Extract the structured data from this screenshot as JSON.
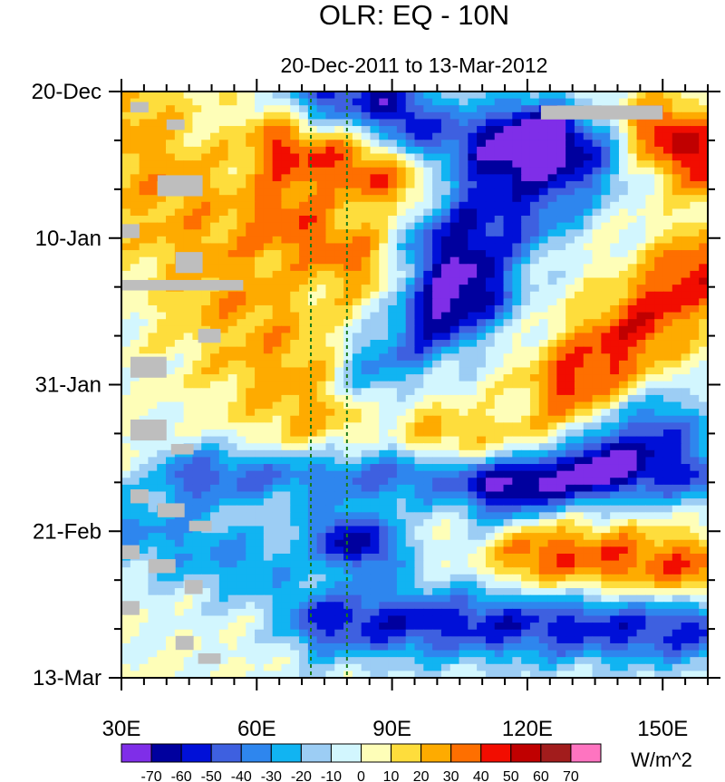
{
  "chart_data": {
    "type": "heatmap",
    "title": "OLR: EQ - 10N",
    "subtitle": "20-Dec-2011 to 13-Mar-2012",
    "xlabel": "",
    "ylabel": "",
    "x_range": [
      30,
      160
    ],
    "y_range_days": [
      0,
      84
    ],
    "x_ticks": [
      {
        "value": 30,
        "label": "30E"
      },
      {
        "value": 60,
        "label": "60E"
      },
      {
        "value": 90,
        "label": "90E"
      },
      {
        "value": 120,
        "label": "120E"
      },
      {
        "value": 150,
        "label": "150E"
      }
    ],
    "y_ticks": [
      {
        "day": 0,
        "label": "20-Dec"
      },
      {
        "day": 21,
        "label": "10-Jan"
      },
      {
        "day": 42,
        "label": "31-Jan"
      },
      {
        "day": 63,
        "label": "21-Feb"
      },
      {
        "day": 84,
        "label": "13-Mar"
      }
    ],
    "reference_lines_x": [
      72,
      80
    ],
    "colorbar": {
      "units": "W/m^2",
      "levels": [
        -70,
        -60,
        -50,
        -40,
        -30,
        -20,
        -10,
        0,
        10,
        20,
        30,
        40,
        50,
        60,
        70
      ],
      "colors": [
        "#7f2ee8",
        "#00009e",
        "#0010d8",
        "#3e60e0",
        "#2e86ee",
        "#11b4f2",
        "#9ccdf4",
        "#d2f6fe",
        "#fefeb8",
        "#fedd3c",
        "#feab00",
        "#fe6f00",
        "#f20d00",
        "#c00000",
        "#a21c1c",
        "#fe74c0"
      ]
    },
    "missing_color": "#bebebe",
    "features": [
      {
        "name": "convective-band",
        "value": -55,
        "lon1": 75,
        "day1": 0,
        "lon2": 88,
        "day2": 1,
        "width": 6
      },
      {
        "name": "convective-band",
        "value": -45,
        "lon1": 96,
        "day1": 6,
        "lon2": 125,
        "day2": 7,
        "width": 6
      },
      {
        "name": "convective-band",
        "value": -40,
        "lon1": 135,
        "day1": 10,
        "lon2": 100,
        "day2": 30,
        "width": 6
      },
      {
        "name": "convective-band",
        "value": -45,
        "lon1": 122,
        "day1": 6,
        "lon2": 100,
        "day2": 22,
        "width": 6
      },
      {
        "name": "convective-band",
        "value": -40,
        "lon1": 110,
        "day1": 30,
        "lon2": 85,
        "day2": 40,
        "width": 6
      },
      {
        "name": "convective-band",
        "value": -45,
        "lon1": 45,
        "day1": 55,
        "lon2": 160,
        "day2": 55,
        "width": 5
      },
      {
        "name": "convective-band",
        "value": -60,
        "lon1": 78,
        "day1": 64,
        "lon2": 86,
        "day2": 65,
        "width": 5
      },
      {
        "name": "convective-band",
        "value": -55,
        "lon1": 75,
        "day1": 76,
        "lon2": 160,
        "day2": 77,
        "width": 6
      },
      {
        "name": "convective-band",
        "value": -45,
        "lon1": 150,
        "day1": 48,
        "lon2": 115,
        "day2": 58,
        "width": 6
      },
      {
        "name": "convective-band",
        "value": -30,
        "lon1": 30,
        "day1": 62,
        "lon2": 60,
        "day2": 68,
        "width": 7
      },
      {
        "name": "suppressed-band",
        "value": 40,
        "lon1": 66,
        "day1": 8,
        "lon2": 90,
        "day2": 12,
        "width": 6
      },
      {
        "name": "suppressed-band",
        "value": 50,
        "lon1": 150,
        "day1": 6,
        "lon2": 160,
        "day2": 10,
        "width": 6
      },
      {
        "name": "suppressed-band",
        "value": 45,
        "lon1": 158,
        "day1": 26,
        "lon2": 130,
        "day2": 42,
        "width": 7
      },
      {
        "name": "suppressed-band",
        "value": 30,
        "lon1": 100,
        "day1": 50,
        "lon2": 125,
        "day2": 52,
        "width": 5
      },
      {
        "name": "suppressed-band",
        "value": 40,
        "lon1": 120,
        "day1": 66,
        "lon2": 160,
        "day2": 69,
        "width": 6
      },
      {
        "name": "suppressed-band",
        "value": 25,
        "lon1": 30,
        "day1": 5,
        "lon2": 72,
        "day2": 45,
        "width": 12
      },
      {
        "name": "suppressed-band",
        "value": 30,
        "lon1": 66,
        "day1": 18,
        "lon2": 82,
        "day2": 24,
        "width": 6
      }
    ],
    "missing_blocks": [
      {
        "lon1": 32,
        "lon2": 36,
        "day1": 1.5,
        "day2": 3
      },
      {
        "lon1": 40,
        "lon2": 44,
        "day1": 4,
        "day2": 5.5
      },
      {
        "lon1": 38,
        "lon2": 48,
        "day1": 12,
        "day2": 15
      },
      {
        "lon1": 30,
        "lon2": 34,
        "day1": 19,
        "day2": 21
      },
      {
        "lon1": 42,
        "lon2": 48,
        "day1": 23,
        "day2": 26
      },
      {
        "lon1": 30,
        "lon2": 57,
        "day1": 27,
        "day2": 28.5
      },
      {
        "lon1": 47,
        "lon2": 52,
        "day1": 34,
        "day2": 36
      },
      {
        "lon1": 32,
        "lon2": 40,
        "day1": 38,
        "day2": 41
      },
      {
        "lon1": 32,
        "lon2": 40,
        "day1": 47,
        "day2": 50
      },
      {
        "lon1": 41,
        "lon2": 46,
        "day1": 50.5,
        "day2": 52
      },
      {
        "lon1": 32,
        "lon2": 36,
        "day1": 57,
        "day2": 59
      },
      {
        "lon1": 38,
        "lon2": 44,
        "day1": 59,
        "day2": 61
      },
      {
        "lon1": 45,
        "lon2": 50,
        "day1": 61.5,
        "day2": 63
      },
      {
        "lon1": 30,
        "lon2": 34,
        "day1": 65,
        "day2": 67
      },
      {
        "lon1": 36,
        "lon2": 42,
        "day1": 67,
        "day2": 69
      },
      {
        "lon1": 44,
        "lon2": 48,
        "day1": 70,
        "day2": 72
      },
      {
        "lon1": 30,
        "lon2": 34,
        "day1": 73,
        "day2": 75
      },
      {
        "lon1": 42,
        "lon2": 46,
        "day1": 78,
        "day2": 80
      },
      {
        "lon1": 47,
        "lon2": 52,
        "day1": 80.5,
        "day2": 82
      },
      {
        "lon1": 123,
        "lon2": 150,
        "day1": 2,
        "day2": 4
      }
    ]
  }
}
